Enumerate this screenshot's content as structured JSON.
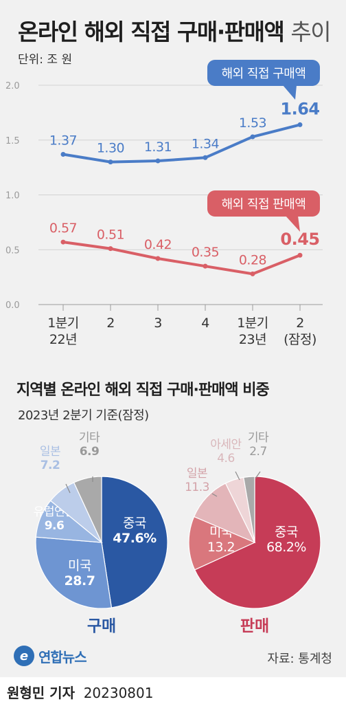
{
  "title": {
    "main": "온라인 해외 직접 구매·판매액",
    "suffix": "추이"
  },
  "unit_label": "단위: 조 원",
  "chart_data": [
    {
      "type": "line",
      "x": [
        "1분기\n22년",
        "2",
        "3",
        "4",
        "1분기\n23년",
        "2\n(잠정)"
      ],
      "yticks": [
        "0.0",
        "0.5",
        "1.0",
        "1.5",
        "2.0"
      ],
      "ylim": [
        0,
        2.0
      ],
      "series": [
        {
          "name": "해외 직접 구매액",
          "values": [
            1.37,
            1.3,
            1.31,
            1.34,
            1.53,
            1.64
          ],
          "labels": [
            "1.37",
            "1.30",
            "1.31",
            "1.34",
            "1.53",
            "1.64"
          ],
          "color": "#4a7cc7"
        },
        {
          "name": "해외 직접 판매액",
          "values": [
            0.57,
            0.51,
            0.42,
            0.35,
            0.28,
            0.45
          ],
          "labels": [
            "0.57",
            "0.51",
            "0.42",
            "0.35",
            "0.28",
            "0.45"
          ],
          "color": "#d95f66"
        }
      ]
    },
    {
      "type": "pie",
      "name": "구매",
      "slices": [
        {
          "label": "중국",
          "value": 47.6,
          "text": "47.6%",
          "color": "#2a58a3",
          "text_color": "#ffffff"
        },
        {
          "label": "미국",
          "value": 28.7,
          "text": "28.7",
          "color": "#6e95d2",
          "text_color": "#ffffff"
        },
        {
          "label": "유럽연합",
          "value": 9.6,
          "text": "9.6",
          "color": "#98b5e1",
          "text_color": "#ffffff"
        },
        {
          "label": "일본",
          "value": 7.2,
          "text": "7.2",
          "color": "#bccdea",
          "text_color": "#a9bfe3"
        },
        {
          "label": "기타",
          "value": 6.9,
          "text": "6.9",
          "color": "#a9a9a9",
          "text_color": "#999999"
        }
      ],
      "caption": "구매",
      "caption_color": "#2a58a3"
    },
    {
      "type": "pie",
      "name": "판매",
      "slices": [
        {
          "label": "중국",
          "value": 68.2,
          "text": "68.2%",
          "color": "#c63c57",
          "text_color": "#ffffff"
        },
        {
          "label": "미국",
          "value": 13.2,
          "text": "13.2",
          "color": "#d9777d",
          "text_color": "#ffffff"
        },
        {
          "label": "일본",
          "value": 11.3,
          "text": "11.3",
          "color": "#e3b5b9",
          "text_color": "#d3a2a8"
        },
        {
          "label": "아세안",
          "value": 4.6,
          "text": "4.6",
          "color": "#eed5d7",
          "text_color": "#d9b6ba"
        },
        {
          "label": "기타",
          "value": 2.7,
          "text": "2.7",
          "color": "#a9a9a9",
          "text_color": "#999999"
        }
      ],
      "caption": "판매",
      "caption_color": "#c63c57"
    }
  ],
  "section": {
    "title": "지역별 온라인 해외 직접 구매·판매액 비중",
    "subtitle": "2023년 2분기 기준(잠정)"
  },
  "source": "자료: 통계청",
  "logo": {
    "mark": "e",
    "name": "연합뉴스"
  },
  "byline": {
    "author": "원형민 기자",
    "date": "20230801"
  }
}
